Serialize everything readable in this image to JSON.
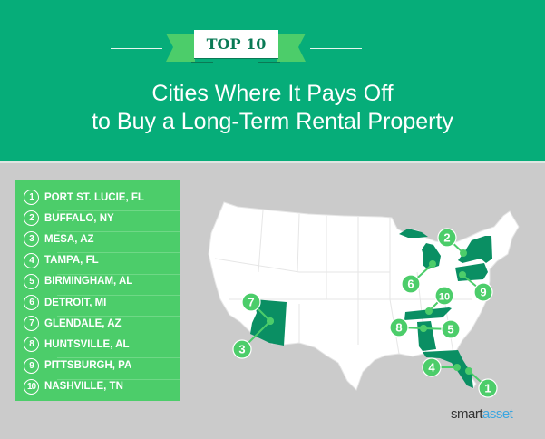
{
  "header": {
    "badge": "TOP 10",
    "title_line1": "Cities Where It Pays Off",
    "title_line2": "to Buy a Long-Term Rental Property"
  },
  "colors": {
    "header_bg": "#06ad79",
    "accent": "#4ccd6a",
    "highlight_state": "#0a8f63",
    "background": "#cbcbcb"
  },
  "list": [
    {
      "rank": "1",
      "city": "PORT ST. LUCIE, FL"
    },
    {
      "rank": "2",
      "city": "BUFFALO, NY"
    },
    {
      "rank": "3",
      "city": "MESA, AZ"
    },
    {
      "rank": "4",
      "city": "TAMPA, FL"
    },
    {
      "rank": "5",
      "city": "BIRMINGHAM, AL"
    },
    {
      "rank": "6",
      "city": "DETROIT, MI"
    },
    {
      "rank": "7",
      "city": "GLENDALE, AZ"
    },
    {
      "rank": "8",
      "city": "HUNTSVILLE, AL"
    },
    {
      "rank": "9",
      "city": "PITTSBURGH, PA"
    },
    {
      "rank": "10",
      "city": "NASHVILLE, TN"
    }
  ],
  "map": {
    "highlighted_states": [
      "FL",
      "NY",
      "AZ",
      "AL",
      "MI",
      "PA",
      "TN"
    ]
  },
  "logo": {
    "part1": "smart",
    "part2": "asset"
  }
}
